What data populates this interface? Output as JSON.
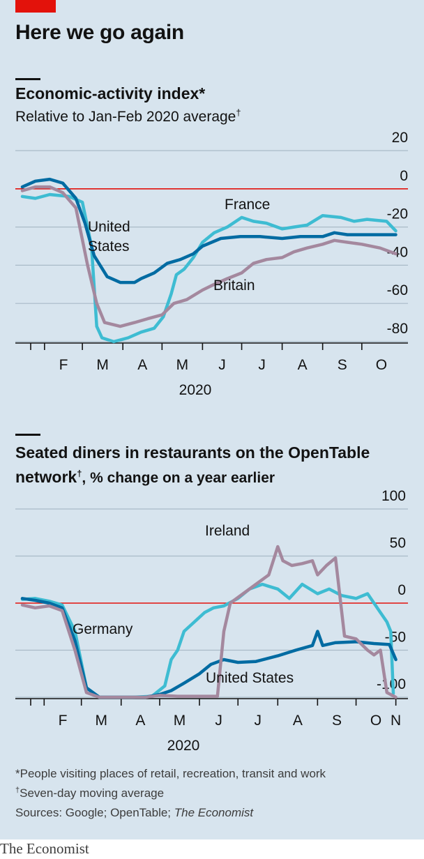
{
  "title": "Here we go again",
  "chart_data": [
    {
      "type": "line",
      "title": "Economic-activity index*",
      "subtitle": "Relative to Jan-Feb 2020 average",
      "subtitle_mark": "†",
      "x_tick_labels": [
        "F",
        "M",
        "A",
        "M",
        "J",
        "J",
        "A",
        "S",
        "O"
      ],
      "x_tick_dates": [
        "2020-02-01",
        "2020-03-01",
        "2020-04-01",
        "2020-05-01",
        "2020-06-01",
        "2020-07-01",
        "2020-08-01",
        "2020-09-01",
        "2020-10-01"
      ],
      "x_range": [
        "2020-01-15",
        "2020-10-31"
      ],
      "year_label": "2020",
      "ylim": [
        -80,
        20
      ],
      "y_ticks": [
        20,
        0,
        -20,
        -40,
        -60,
        -80
      ],
      "zero_line_color": "#e3120b",
      "grid": true,
      "series": [
        {
          "name": "France",
          "label": "France",
          "color": "#3ebcd2",
          "points": [
            [
              "2020-01-15",
              -4
            ],
            [
              "2020-01-25",
              -5
            ],
            [
              "2020-02-05",
              -3
            ],
            [
              "2020-02-20",
              -4
            ],
            [
              "2020-03-01",
              -7
            ],
            [
              "2020-03-08",
              -30
            ],
            [
              "2020-03-12",
              -72
            ],
            [
              "2020-03-16",
              -78
            ],
            [
              "2020-03-25",
              -80
            ],
            [
              "2020-04-05",
              -78
            ],
            [
              "2020-04-15",
              -75
            ],
            [
              "2020-04-25",
              -73
            ],
            [
              "2020-05-02",
              -67
            ],
            [
              "2020-05-08",
              -55
            ],
            [
              "2020-05-12",
              -45
            ],
            [
              "2020-05-18",
              -42
            ],
            [
              "2020-05-25",
              -36
            ],
            [
              "2020-06-01",
              -28
            ],
            [
              "2020-06-10",
              -23
            ],
            [
              "2020-06-20",
              -20
            ],
            [
              "2020-07-01",
              -15
            ],
            [
              "2020-07-10",
              -17
            ],
            [
              "2020-07-20",
              -18
            ],
            [
              "2020-08-01",
              -21
            ],
            [
              "2020-08-10",
              -20
            ],
            [
              "2020-08-20",
              -19
            ],
            [
              "2020-09-01",
              -14
            ],
            [
              "2020-09-15",
              -15
            ],
            [
              "2020-09-25",
              -17
            ],
            [
              "2020-10-05",
              -16
            ],
            [
              "2020-10-20",
              -17
            ],
            [
              "2020-10-27",
              -22
            ]
          ]
        },
        {
          "name": "United States",
          "label": "United States",
          "color": "#006ba2",
          "points": [
            [
              "2020-01-15",
              1
            ],
            [
              "2020-01-25",
              4
            ],
            [
              "2020-02-05",
              5
            ],
            [
              "2020-02-15",
              3
            ],
            [
              "2020-02-25",
              -5
            ],
            [
              "2020-03-03",
              -18
            ],
            [
              "2020-03-10",
              -35
            ],
            [
              "2020-03-20",
              -46
            ],
            [
              "2020-03-30",
              -49
            ],
            [
              "2020-04-10",
              -49
            ],
            [
              "2020-04-15",
              -47
            ],
            [
              "2020-04-25",
              -44
            ],
            [
              "2020-05-05",
              -39
            ],
            [
              "2020-05-15",
              -37
            ],
            [
              "2020-05-25",
              -34
            ],
            [
              "2020-06-01",
              -30
            ],
            [
              "2020-06-15",
              -26
            ],
            [
              "2020-06-30",
              -25
            ],
            [
              "2020-07-15",
              -25
            ],
            [
              "2020-08-01",
              -26
            ],
            [
              "2020-08-15",
              -25
            ],
            [
              "2020-09-01",
              -25
            ],
            [
              "2020-09-10",
              -23
            ],
            [
              "2020-09-20",
              -24
            ],
            [
              "2020-10-01",
              -24
            ],
            [
              "2020-10-15",
              -24
            ],
            [
              "2020-10-27",
              -24
            ]
          ]
        },
        {
          "name": "Britain",
          "label": "Britain",
          "color": "#a4889e",
          "points": [
            [
              "2020-01-15",
              -1
            ],
            [
              "2020-01-25",
              1
            ],
            [
              "2020-02-05",
              1
            ],
            [
              "2020-02-15",
              -2
            ],
            [
              "2020-02-25",
              -10
            ],
            [
              "2020-03-05",
              -40
            ],
            [
              "2020-03-12",
              -60
            ],
            [
              "2020-03-18",
              -70
            ],
            [
              "2020-03-30",
              -72
            ],
            [
              "2020-04-10",
              -70
            ],
            [
              "2020-04-20",
              -68
            ],
            [
              "2020-05-01",
              -66
            ],
            [
              "2020-05-10",
              -60
            ],
            [
              "2020-05-20",
              -58
            ],
            [
              "2020-06-01",
              -53
            ],
            [
              "2020-06-10",
              -50
            ],
            [
              "2020-06-20",
              -47
            ],
            [
              "2020-07-01",
              -44
            ],
            [
              "2020-07-10",
              -39
            ],
            [
              "2020-07-20",
              -37
            ],
            [
              "2020-08-01",
              -36
            ],
            [
              "2020-08-10",
              -33
            ],
            [
              "2020-08-20",
              -31
            ],
            [
              "2020-09-01",
              -29
            ],
            [
              "2020-09-10",
              -27
            ],
            [
              "2020-09-20",
              -28
            ],
            [
              "2020-10-01",
              -29
            ],
            [
              "2020-10-15",
              -31
            ],
            [
              "2020-10-27",
              -34
            ]
          ]
        }
      ]
    },
    {
      "type": "line",
      "title": "Seated diners in restaurants on the OpenTable network",
      "title_mark": "†",
      "subtitle": ", % change on a year earlier",
      "x_tick_labels": [
        "F",
        "M",
        "A",
        "M",
        "J",
        "J",
        "A",
        "S",
        "O",
        "N"
      ],
      "x_tick_dates": [
        "2020-02-01",
        "2020-03-01",
        "2020-04-01",
        "2020-05-01",
        "2020-06-01",
        "2020-07-01",
        "2020-08-01",
        "2020-09-01",
        "2020-10-01",
        "2020-11-01"
      ],
      "x_range": [
        "2020-01-15",
        "2020-11-05"
      ],
      "year_label": "2020",
      "ylim": [
        -100,
        100
      ],
      "y_ticks": [
        100,
        50,
        0,
        -50,
        -100
      ],
      "zero_line_color": "#e3120b",
      "grid": true,
      "series": [
        {
          "name": "Germany",
          "label": "Germany",
          "color": "#3ebcd2",
          "points": [
            [
              "2020-01-15",
              4
            ],
            [
              "2020-01-25",
              5
            ],
            [
              "2020-02-05",
              2
            ],
            [
              "2020-02-15",
              -2
            ],
            [
              "2020-02-25",
              -30
            ],
            [
              "2020-03-05",
              -90
            ],
            [
              "2020-03-15",
              -100
            ],
            [
              "2020-04-10",
              -100
            ],
            [
              "2020-04-25",
              -99
            ],
            [
              "2020-05-05",
              -88
            ],
            [
              "2020-05-10",
              -60
            ],
            [
              "2020-05-15",
              -50
            ],
            [
              "2020-05-20",
              -30
            ],
            [
              "2020-05-28",
              -20
            ],
            [
              "2020-06-05",
              -10
            ],
            [
              "2020-06-12",
              -5
            ],
            [
              "2020-06-20",
              -3
            ],
            [
              "2020-07-01",
              5
            ],
            [
              "2020-07-10",
              15
            ],
            [
              "2020-07-20",
              20
            ],
            [
              "2020-08-01",
              15
            ],
            [
              "2020-08-10",
              5
            ],
            [
              "2020-08-20",
              20
            ],
            [
              "2020-09-01",
              10
            ],
            [
              "2020-09-10",
              15
            ],
            [
              "2020-09-20",
              8
            ],
            [
              "2020-10-01",
              5
            ],
            [
              "2020-10-10",
              10
            ],
            [
              "2020-10-20",
              -10
            ],
            [
              "2020-10-25",
              -20
            ],
            [
              "2020-10-28",
              -30
            ],
            [
              "2020-10-30",
              -96
            ]
          ]
        },
        {
          "name": "United States",
          "label": "United States",
          "color": "#006ba2",
          "points": [
            [
              "2020-01-15",
              5
            ],
            [
              "2020-01-25",
              3
            ],
            [
              "2020-02-05",
              0
            ],
            [
              "2020-02-15",
              -5
            ],
            [
              "2020-02-25",
              -40
            ],
            [
              "2020-03-05",
              -90
            ],
            [
              "2020-03-15",
              -100
            ],
            [
              "2020-04-20",
              -100
            ],
            [
              "2020-05-01",
              -97
            ],
            [
              "2020-05-10",
              -93
            ],
            [
              "2020-05-20",
              -85
            ],
            [
              "2020-06-01",
              -75
            ],
            [
              "2020-06-10",
              -65
            ],
            [
              "2020-06-20",
              -60
            ],
            [
              "2020-07-01",
              -63
            ],
            [
              "2020-07-15",
              -62
            ],
            [
              "2020-08-01",
              -56
            ],
            [
              "2020-08-15",
              -50
            ],
            [
              "2020-08-28",
              -45
            ],
            [
              "2020-09-01",
              -30
            ],
            [
              "2020-09-05",
              -45
            ],
            [
              "2020-09-15",
              -42
            ],
            [
              "2020-10-01",
              -41
            ],
            [
              "2020-10-15",
              -43
            ],
            [
              "2020-10-27",
              -44
            ],
            [
              "2020-11-01",
              -60
            ]
          ]
        },
        {
          "name": "Ireland",
          "label": "Ireland",
          "color": "#a4889e",
          "points": [
            [
              "2020-01-15",
              -2
            ],
            [
              "2020-01-25",
              -5
            ],
            [
              "2020-02-05",
              -3
            ],
            [
              "2020-02-15",
              -8
            ],
            [
              "2020-02-25",
              -50
            ],
            [
              "2020-03-05",
              -95
            ],
            [
              "2020-03-15",
              -100
            ],
            [
              "2020-04-20",
              -100
            ],
            [
              "2020-05-01",
              -98
            ],
            [
              "2020-05-15",
              -99
            ],
            [
              "2020-06-01",
              -99
            ],
            [
              "2020-06-15",
              -99
            ],
            [
              "2020-06-20",
              -30
            ],
            [
              "2020-06-25",
              0
            ],
            [
              "2020-07-05",
              10
            ],
            [
              "2020-07-15",
              20
            ],
            [
              "2020-07-25",
              30
            ],
            [
              "2020-08-01",
              60
            ],
            [
              "2020-08-05",
              45
            ],
            [
              "2020-08-12",
              40
            ],
            [
              "2020-08-20",
              42
            ],
            [
              "2020-08-28",
              45
            ],
            [
              "2020-09-01",
              30
            ],
            [
              "2020-09-08",
              40
            ],
            [
              "2020-09-15",
              48
            ],
            [
              "2020-09-22",
              -35
            ],
            [
              "2020-10-01",
              -38
            ],
            [
              "2020-10-10",
              -50
            ],
            [
              "2020-10-15",
              -55
            ],
            [
              "2020-10-20",
              -50
            ],
            [
              "2020-10-25",
              -95
            ],
            [
              "2020-11-01",
              -100
            ]
          ]
        }
      ]
    }
  ],
  "footnotes": {
    "note1": "*People visiting places of retail, recreation, transit and work",
    "note2_mark": "†",
    "note2": "Seven-day moving average",
    "sources_prefix": "Sources: Google; OpenTable; ",
    "sources_italic": "The Economist"
  },
  "brand": "The Economist"
}
